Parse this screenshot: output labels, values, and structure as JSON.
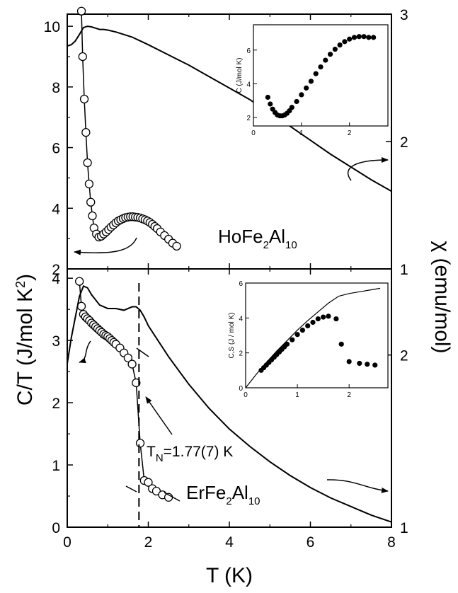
{
  "chart_data": [
    {
      "panel": "top",
      "type": "scatter",
      "label": {
        "compound": "HoFe",
        "sub1": "2",
        "mid": "Al",
        "sub2": "10"
      },
      "xlim": [
        0,
        8
      ],
      "ylim": [
        2,
        10.4
      ],
      "y2lim": [
        1,
        3
      ],
      "xticks": [
        "0",
        "2",
        "4",
        "6",
        "8"
      ],
      "yticks": [
        "2",
        "4",
        "6",
        "8",
        "10"
      ],
      "y2ticks": [
        "1",
        "2",
        "3"
      ],
      "series": [
        {
          "axis": "left",
          "style": "open-circles-line",
          "x": [
            0.35,
            0.38,
            0.42,
            0.46,
            0.5,
            0.54,
            0.58,
            0.62,
            0.66,
            0.72,
            0.78,
            0.84,
            0.9,
            0.96,
            1.02,
            1.08,
            1.14,
            1.2,
            1.26,
            1.32,
            1.38,
            1.44,
            1.5,
            1.56,
            1.62,
            1.68,
            1.74,
            1.8,
            1.86,
            1.92,
            1.98,
            2.04,
            2.1,
            2.16,
            2.22,
            2.3,
            2.4,
            2.5,
            2.6,
            2.7
          ],
          "y": [
            10.5,
            9.0,
            7.6,
            6.5,
            5.5,
            4.8,
            4.2,
            3.75,
            3.35,
            3.15,
            3.05,
            3.08,
            3.15,
            3.22,
            3.3,
            3.38,
            3.45,
            3.52,
            3.58,
            3.62,
            3.66,
            3.69,
            3.71,
            3.72,
            3.72,
            3.71,
            3.7,
            3.68,
            3.65,
            3.62,
            3.58,
            3.53,
            3.47,
            3.4,
            3.33,
            3.22,
            3.1,
            2.98,
            2.85,
            2.75
          ]
        },
        {
          "axis": "right",
          "style": "line",
          "x": [
            0,
            0.1,
            0.2,
            0.3,
            0.4,
            0.5,
            0.6,
            0.7,
            0.8,
            0.9,
            1.0,
            1.2,
            1.4,
            1.6,
            1.8,
            2.0,
            2.5,
            3.0,
            3.5,
            4.0,
            4.5,
            5.0,
            5.5,
            6.0,
            6.5,
            7.0,
            7.5,
            8.0
          ],
          "y": [
            2.75,
            2.76,
            2.79,
            2.84,
            2.895,
            2.905,
            2.9,
            2.89,
            2.88,
            2.88,
            2.875,
            2.86,
            2.84,
            2.82,
            2.79,
            2.76,
            2.68,
            2.6,
            2.51,
            2.42,
            2.33,
            2.22,
            2.12,
            2.01,
            1.9,
            1.8,
            1.7,
            1.61
          ]
        }
      ]
    },
    {
      "panel": "top-inset",
      "type": "scatter",
      "ylabel": "C (J/mol K)",
      "xlim": [
        0,
        2.8
      ],
      "ylim": [
        1.5,
        7.5
      ],
      "xticks": [
        "0",
        "1",
        "2"
      ],
      "yticks": [
        "2",
        "4",
        "6"
      ],
      "x": [
        0.3,
        0.35,
        0.4,
        0.45,
        0.5,
        0.55,
        0.6,
        0.65,
        0.7,
        0.75,
        0.8,
        0.9,
        1.0,
        1.1,
        1.2,
        1.3,
        1.4,
        1.5,
        1.6,
        1.7,
        1.8,
        1.9,
        2.0,
        2.1,
        2.2,
        2.3,
        2.4,
        2.5
      ],
      "y": [
        3.2,
        2.8,
        2.5,
        2.3,
        2.15,
        2.1,
        2.1,
        2.15,
        2.25,
        2.4,
        2.6,
        2.95,
        3.35,
        3.75,
        4.15,
        4.6,
        5.0,
        5.4,
        5.75,
        6.05,
        6.3,
        6.5,
        6.65,
        6.75,
        6.8,
        6.8,
        6.75,
        6.75
      ]
    },
    {
      "panel": "bottom",
      "type": "scatter",
      "label": {
        "compound": "ErFe",
        "sub1": "2",
        "mid": "Al",
        "sub2": "10"
      },
      "annotation": {
        "main": "T",
        "sub": "N",
        "rest": "=1.77(7) K"
      },
      "xlim": [
        0,
        8
      ],
      "ylim": [
        0,
        4.15
      ],
      "y2lim": [
        1,
        2.5
      ],
      "xticks": [
        "0",
        "2",
        "4",
        "6",
        "8"
      ],
      "yticks": [
        "0",
        "1",
        "2",
        "3",
        "4"
      ],
      "y2ticks": [
        "1",
        "2"
      ],
      "transition_T": 1.77,
      "series": [
        {
          "axis": "left",
          "style": "open-circles-line",
          "x": [
            0.3,
            0.35,
            0.4,
            0.45,
            0.5,
            0.55,
            0.6,
            0.65,
            0.7,
            0.75,
            0.8,
            0.85,
            0.9,
            0.95,
            1.0,
            1.05,
            1.1,
            1.15,
            1.2,
            1.3,
            1.4,
            1.5,
            1.6,
            1.7,
            1.8,
            1.9,
            2.0,
            2.1,
            2.2,
            2.35,
            2.5
          ],
          "y": [
            3.95,
            3.55,
            3.42,
            3.38,
            3.35,
            3.32,
            3.28,
            3.25,
            3.22,
            3.19,
            3.16,
            3.13,
            3.1,
            3.08,
            3.06,
            3.03,
            3.0,
            2.97,
            2.94,
            2.88,
            2.8,
            2.72,
            2.62,
            2.32,
            1.35,
            0.75,
            0.72,
            0.62,
            0.58,
            0.52,
            0.48
          ]
        },
        {
          "axis": "right",
          "style": "line",
          "x": [
            0,
            0.1,
            0.2,
            0.3,
            0.4,
            0.5,
            0.6,
            0.8,
            1.0,
            1.2,
            1.4,
            1.6,
            1.7,
            1.8,
            1.9,
            2.0,
            2.5,
            3.0,
            3.5,
            4.0,
            4.5,
            5.0,
            5.5,
            6.0,
            6.5,
            7.0,
            7.5,
            8.0
          ],
          "y": [
            1.95,
            2.1,
            2.22,
            2.34,
            2.4,
            2.39,
            2.35,
            2.29,
            2.27,
            2.27,
            2.26,
            2.28,
            2.28,
            2.26,
            2.22,
            2.17,
            1.99,
            1.83,
            1.69,
            1.57,
            1.47,
            1.38,
            1.3,
            1.23,
            1.17,
            1.12,
            1.07,
            1.03
          ]
        }
      ]
    },
    {
      "panel": "bottom-inset",
      "type": "scatter",
      "ylabel": "C,S  (J / mol K)",
      "xlim": [
        0,
        2.75
      ],
      "ylim": [
        0,
        6
      ],
      "xticks": [
        "0",
        "1",
        "2"
      ],
      "yticks": [
        "0",
        "2",
        "4",
        "6"
      ],
      "points": {
        "x": [
          0.3,
          0.35,
          0.4,
          0.45,
          0.5,
          0.55,
          0.6,
          0.65,
          0.7,
          0.75,
          0.8,
          0.9,
          1.0,
          1.1,
          1.2,
          1.3,
          1.4,
          1.5,
          1.6,
          1.75,
          1.85,
          2.0,
          2.2,
          2.35,
          2.5
        ],
        "y": [
          1.0,
          1.15,
          1.3,
          1.45,
          1.6,
          1.75,
          1.9,
          2.05,
          2.2,
          2.35,
          2.5,
          2.75,
          3.05,
          3.3,
          3.55,
          3.75,
          3.95,
          4.05,
          4.1,
          3.95,
          2.5,
          1.5,
          1.4,
          1.35,
          1.3
        ]
      },
      "line": {
        "x": [
          0,
          0.2,
          0.4,
          0.6,
          0.8,
          1.0,
          1.2,
          1.4,
          1.6,
          1.8,
          2.0,
          2.2,
          2.4,
          2.6
        ],
        "y": [
          0,
          0.75,
          1.45,
          2.1,
          2.7,
          3.3,
          3.85,
          4.35,
          4.85,
          5.25,
          5.4,
          5.5,
          5.6,
          5.7
        ]
      }
    }
  ],
  "axes": {
    "y_left_title": {
      "main": "C/T (J/mol K",
      "sup": "2",
      "end": ")"
    },
    "y_right_title": "χ (emu/mol)",
    "x_title": "T (K)"
  }
}
